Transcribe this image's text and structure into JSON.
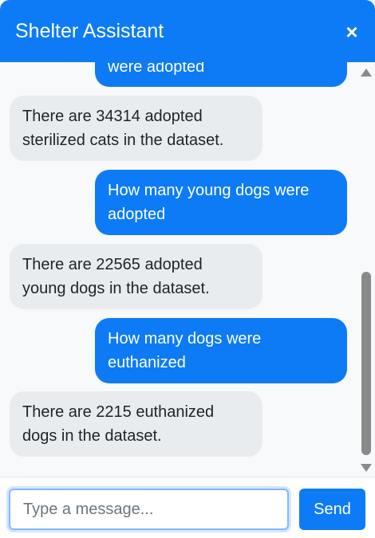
{
  "header": {
    "title": "Shelter Assistant",
    "close_label": "×"
  },
  "messages": [
    {
      "role": "user",
      "text": "were adopted"
    },
    {
      "role": "bot",
      "text": "There are 34314 adopted\nsterilized cats in the dataset."
    },
    {
      "role": "user",
      "text": "How many young dogs were\nadopted"
    },
    {
      "role": "bot",
      "text": "There are 22565 adopted\nyoung dogs in the dataset."
    },
    {
      "role": "user",
      "text": "How many dogs were\neuthanized"
    },
    {
      "role": "bot",
      "text": "There are 2215 euthanized\ndogs in the dataset."
    }
  ],
  "composer": {
    "placeholder": "Type a message...",
    "value": "",
    "send_label": "Send"
  },
  "colors": {
    "accent": "#0d7bf5",
    "bot_bubble": "#e9ecef",
    "background": "#f8f9fa"
  }
}
